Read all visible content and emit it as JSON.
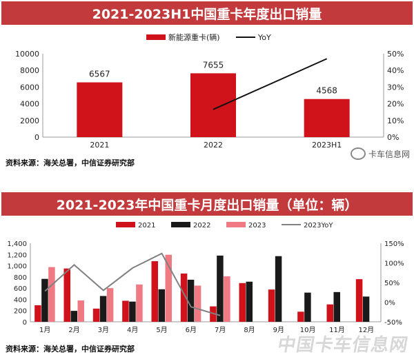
{
  "charts": [
    {
      "title": "2021-2023H1中国重卡年度出口销量",
      "source": "资料来源：海关总署，中信证券研究部",
      "chart_data": {
        "type": "bar",
        "categories": [
          "2021",
          "2022",
          "2023H1"
        ],
        "series": [
          {
            "name": "新能源重卡(辆)",
            "type": "bar",
            "axis": "left",
            "color": "#d0121b",
            "values": [
              6567,
              7655,
              4568
            ]
          },
          {
            "name": "YoY",
            "type": "line",
            "axis": "right",
            "color": "#111111",
            "values": [
              null,
              0.166,
              0.47
            ]
          }
        ],
        "ylim_left": [
          0,
          10000
        ],
        "yticks_left": [
          "0",
          "2000",
          "4000",
          "6000",
          "8000",
          "10000"
        ],
        "ylim_right": [
          0,
          0.5
        ],
        "yticks_right": [
          "0%",
          "10%",
          "20%",
          "30%",
          "40%",
          "50%"
        ],
        "data_labels": [
          "6567",
          "7655",
          "4568"
        ],
        "legend_position": "top",
        "grid": false
      }
    },
    {
      "title": "2021-2023年中国重卡月度出口销量（单位：辆）",
      "source": "资料来源：海关总署，中信证券研究部",
      "chart_data": {
        "type": "bar",
        "categories": [
          "1月",
          "2月",
          "3月",
          "4月",
          "5月",
          "6月",
          "7月",
          "8月",
          "9月",
          "10月",
          "11月",
          "12月"
        ],
        "series": [
          {
            "name": "2021",
            "type": "bar",
            "axis": "left",
            "color": "#d0121b",
            "values": [
              295,
              950,
              235,
              375,
              1080,
              860,
              275,
              690,
              575,
              180,
              310,
              760
            ]
          },
          {
            "name": "2022",
            "type": "bar",
            "axis": "left",
            "color": "#1a1a1a",
            "values": [
              765,
              195,
              460,
              360,
              580,
              750,
              1180,
              715,
              1170,
              520,
              530,
              450
            ]
          },
          {
            "name": "2023",
            "type": "bar",
            "axis": "left",
            "color": "#f07a84",
            "values": [
              975,
              380,
              600,
              665,
              1195,
              645,
              810,
              null,
              null,
              null,
              null,
              null
            ]
          },
          {
            "name": "2023YoY",
            "type": "line",
            "axis": "right",
            "color": "#808080",
            "values": [
              0.28,
              0.95,
              0.3,
              0.87,
              1.24,
              -0.12,
              -0.34,
              null,
              null,
              null,
              null,
              null
            ]
          }
        ],
        "ylim_left": [
          0,
          1400
        ],
        "yticks_left": [
          "0",
          "200",
          "400",
          "600",
          "800",
          "1,000",
          "1,200",
          "1,400"
        ],
        "ylim_right": [
          -0.5,
          1.5
        ],
        "yticks_right": [
          "-50%",
          "0%",
          "50%",
          "100%",
          "150%"
        ],
        "legend_position": "top",
        "grid": false
      }
    }
  ],
  "watermarks": {
    "top": "卡车信息网",
    "bottom": "中国卡车信息网"
  }
}
